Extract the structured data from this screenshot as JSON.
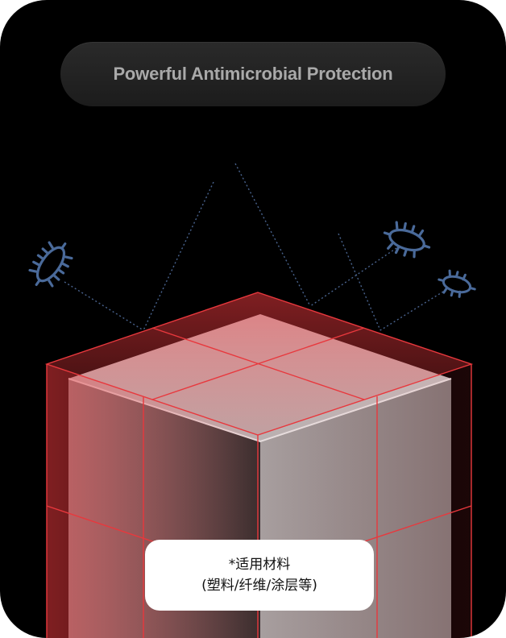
{
  "header": {
    "title": "Powerful Antimicrobial Protection"
  },
  "note": {
    "line1": "*适用材料",
    "line2": "(塑料/纤维/涂层等)"
  },
  "colors": {
    "background": "#000000",
    "accent_red": "#e8383d",
    "bacteria_blue": "#4a6a9a",
    "cube_gray": "#8a8a8a"
  },
  "icons": [
    "bacteria-icon",
    "bacteria-icon",
    "bacteria-icon"
  ]
}
